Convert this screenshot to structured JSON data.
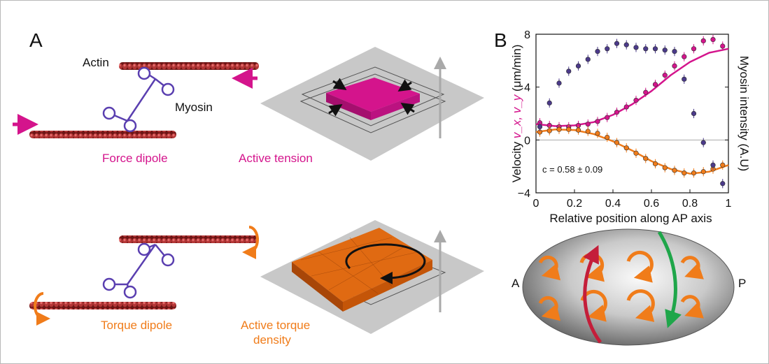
{
  "panel_a": {
    "letter": "A",
    "actin_label": "Actin",
    "myosin_label": "Myosin",
    "force_dipole_label": "Force dipole",
    "active_tension_label": "Active tension",
    "torque_dipole_label": "Torque dipole",
    "active_torque_label_line1": "Active torque",
    "active_torque_label_line2": "density"
  },
  "panel_b": {
    "letter": "B",
    "embryo_left_label": "A",
    "embryo_right_label": "P"
  },
  "colors": {
    "pink": "#d4148c",
    "orange": "#f07c1a",
    "purple": "#4b3a8a",
    "actin": "#7a1e1e",
    "myosin": "#5a3fb0"
  },
  "chart_data": {
    "type": "scatter",
    "xlabel": "Relative position along AP axis",
    "ylabel_left_prefix": "Velocity ",
    "ylabel_left_vars": "v_x, v_y",
    "ylabel_left_suffix": " (μm/min)",
    "ylabel_right": "Myosin intensity (A.U)",
    "annotation": "c = 0.58 ± 0.09",
    "xlim": [
      0,
      1
    ],
    "ylim": [
      -4,
      8
    ],
    "xticks": [
      "0",
      "0.2",
      "0.4",
      "0.6",
      "0.8",
      "1"
    ],
    "yticks": [
      "−4",
      "0",
      "4",
      "8"
    ],
    "zero_line": true,
    "series": [
      {
        "name": "v_x",
        "color": "#d4148c",
        "x": [
          0.02,
          0.07,
          0.12,
          0.17,
          0.22,
          0.27,
          0.32,
          0.37,
          0.42,
          0.47,
          0.52,
          0.57,
          0.62,
          0.67,
          0.72,
          0.77,
          0.82,
          0.87,
          0.92,
          0.97
        ],
        "y": [
          1.3,
          1.1,
          1.0,
          1.0,
          1.1,
          1.2,
          1.4,
          1.7,
          2.1,
          2.5,
          3.0,
          3.6,
          4.2,
          4.9,
          5.6,
          6.3,
          6.9,
          7.5,
          7.6,
          7.1
        ],
        "fit": [
          [
            0,
            1.2
          ],
          [
            0.1,
            1.05
          ],
          [
            0.2,
            1.1
          ],
          [
            0.3,
            1.35
          ],
          [
            0.4,
            1.9
          ],
          [
            0.5,
            2.7
          ],
          [
            0.6,
            3.7
          ],
          [
            0.7,
            4.9
          ],
          [
            0.8,
            5.9
          ],
          [
            0.9,
            6.6
          ],
          [
            1.0,
            6.9
          ]
        ]
      },
      {
        "name": "v_y",
        "color": "#f07c1a",
        "x": [
          0.02,
          0.07,
          0.12,
          0.17,
          0.22,
          0.27,
          0.32,
          0.37,
          0.42,
          0.47,
          0.52,
          0.57,
          0.62,
          0.67,
          0.72,
          0.77,
          0.82,
          0.87,
          0.92,
          0.97
        ],
        "y": [
          0.6,
          0.7,
          0.8,
          0.8,
          0.75,
          0.65,
          0.5,
          0.2,
          -0.2,
          -0.6,
          -1.0,
          -1.4,
          -1.8,
          -2.1,
          -2.3,
          -2.5,
          -2.5,
          -2.4,
          -2.2,
          -1.9
        ],
        "fit": [
          [
            0,
            0.6
          ],
          [
            0.1,
            0.8
          ],
          [
            0.2,
            0.75
          ],
          [
            0.3,
            0.45
          ],
          [
            0.4,
            -0.1
          ],
          [
            0.5,
            -0.8
          ],
          [
            0.6,
            -1.6
          ],
          [
            0.7,
            -2.2
          ],
          [
            0.8,
            -2.55
          ],
          [
            0.9,
            -2.4
          ],
          [
            1.0,
            -1.9
          ]
        ]
      },
      {
        "name": "Myosin intensity",
        "color": "#4b3a8a",
        "x": [
          0.02,
          0.07,
          0.12,
          0.17,
          0.22,
          0.27,
          0.32,
          0.37,
          0.42,
          0.47,
          0.52,
          0.57,
          0.62,
          0.67,
          0.72,
          0.77,
          0.82,
          0.87,
          0.92,
          0.97
        ],
        "y": [
          1.0,
          2.8,
          4.3,
          5.2,
          5.6,
          6.1,
          6.7,
          6.9,
          7.3,
          7.2,
          7.0,
          6.9,
          6.9,
          6.8,
          6.7,
          4.6,
          2.0,
          -0.2,
          -1.9,
          -3.3
        ]
      }
    ]
  }
}
